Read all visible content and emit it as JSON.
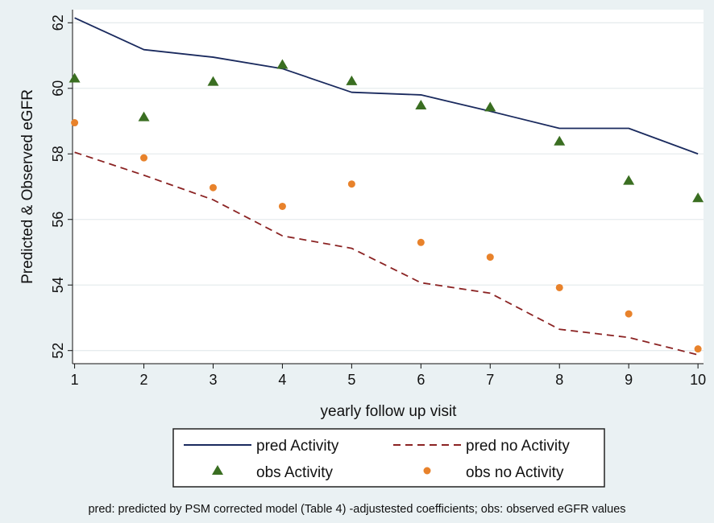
{
  "chart_data": {
    "type": "line",
    "xlabel": "yearly follow up visit",
    "ylabel": "Predicted & Observed eGFR",
    "x": [
      1,
      2,
      3,
      4,
      5,
      6,
      7,
      8,
      9,
      10
    ],
    "xticks": [
      "1",
      "2",
      "3",
      "4",
      "5",
      "6",
      "7",
      "8",
      "9",
      "10"
    ],
    "yticks": [
      "52",
      "54",
      "56",
      "58",
      "60",
      "62"
    ],
    "xlim": [
      0.97,
      10.08
    ],
    "ylim": [
      51.6,
      62.4
    ],
    "grid": true,
    "legend_position": "bottom",
    "series": [
      {
        "name": "pred Activity",
        "style": "solid-line",
        "color": "#1a2a5e",
        "values": [
          62.15,
          61.18,
          60.95,
          60.6,
          59.88,
          59.8,
          59.3,
          58.78,
          58.78,
          58.0
        ]
      },
      {
        "name": "pred no Activity",
        "style": "dashed-line",
        "color": "#8b2323",
        "values": [
          58.05,
          57.35,
          56.6,
          55.5,
          55.12,
          54.07,
          53.75,
          52.65,
          52.4,
          51.87
        ]
      },
      {
        "name": "obs Activity",
        "style": "triangle-marker",
        "color": "#3a6e21",
        "values": [
          60.3,
          59.12,
          60.2,
          60.72,
          60.22,
          59.48,
          59.42,
          58.38,
          57.18,
          56.65
        ]
      },
      {
        "name": "obs no Activity",
        "style": "circle-marker",
        "color": "#e8822b",
        "values": [
          58.95,
          57.88,
          56.97,
          56.4,
          57.08,
          55.3,
          54.85,
          53.92,
          53.12,
          52.05
        ]
      }
    ],
    "annotation": "pred: predicted by PSM corrected model (Table 4) -adjustested coefficients; obs: observed eGFR values"
  }
}
